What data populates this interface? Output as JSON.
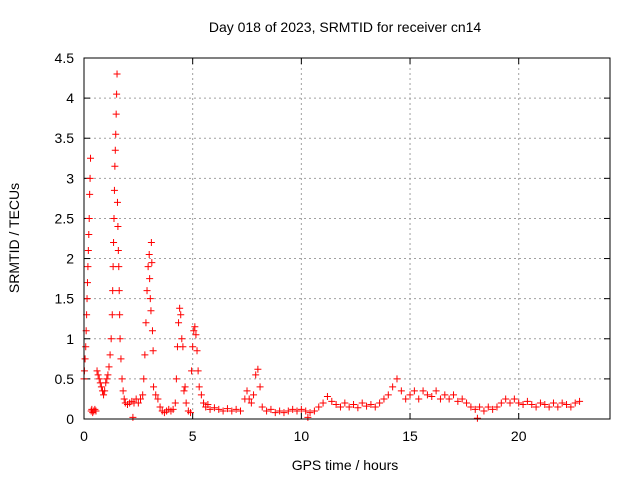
{
  "chart_data": {
    "type": "scatter",
    "title": "Day 018 of 2023, SRMTID for receiver cn14",
    "xlabel": "GPS time / hours",
    "ylabel": "SRMTID / TECUs",
    "xlim": [
      0,
      24.2
    ],
    "ylim": [
      0,
      4.5
    ],
    "grid": true,
    "marker": "+",
    "colors": {
      "points": "#ff0000",
      "grid": "#a0a0a0",
      "axis": "#000000"
    },
    "x_ticks": [
      {
        "value": 0,
        "label": "0"
      },
      {
        "value": 5,
        "label": "5"
      },
      {
        "value": 10,
        "label": "10"
      },
      {
        "value": 15,
        "label": "15"
      },
      {
        "value": 20,
        "label": "20"
      }
    ],
    "y_ticks": [
      {
        "value": 0,
        "label": "0"
      },
      {
        "value": 0.5,
        "label": "0.5"
      },
      {
        "value": 1,
        "label": "1"
      },
      {
        "value": 1.5,
        "label": "1.5"
      },
      {
        "value": 2,
        "label": "2"
      },
      {
        "value": 2.5,
        "label": "2.5"
      },
      {
        "value": 3,
        "label": "3"
      },
      {
        "value": 3.5,
        "label": "3.5"
      },
      {
        "value": 4,
        "label": "4"
      },
      {
        "value": 4.5,
        "label": "4.5"
      }
    ],
    "series": [
      {
        "name": "SRMTID",
        "points": [
          [
            0.0,
            0.5
          ],
          [
            0.02,
            0.6
          ],
          [
            0.05,
            0.75
          ],
          [
            0.08,
            0.9
          ],
          [
            0.1,
            1.1
          ],
          [
            0.12,
            1.3
          ],
          [
            0.14,
            1.5
          ],
          [
            0.16,
            1.7
          ],
          [
            0.18,
            1.9
          ],
          [
            0.2,
            2.1
          ],
          [
            0.22,
            2.3
          ],
          [
            0.24,
            2.5
          ],
          [
            0.26,
            2.8
          ],
          [
            0.28,
            3.0
          ],
          [
            0.3,
            3.25
          ],
          [
            0.33,
            0.1
          ],
          [
            0.36,
            0.12
          ],
          [
            0.4,
            0.08
          ],
          [
            0.45,
            0.1
          ],
          [
            0.5,
            0.12
          ],
          [
            0.55,
            0.1
          ],
          [
            0.6,
            0.6
          ],
          [
            0.65,
            0.55
          ],
          [
            0.7,
            0.5
          ],
          [
            0.75,
            0.45
          ],
          [
            0.8,
            0.4
          ],
          [
            0.85,
            0.35
          ],
          [
            0.9,
            0.3
          ],
          [
            0.95,
            0.35
          ],
          [
            1.0,
            0.45
          ],
          [
            1.05,
            0.5
          ],
          [
            1.1,
            0.55
          ],
          [
            1.15,
            0.65
          ],
          [
            1.2,
            0.8
          ],
          [
            1.25,
            1.0
          ],
          [
            1.3,
            1.3
          ],
          [
            1.32,
            1.6
          ],
          [
            1.34,
            1.9
          ],
          [
            1.36,
            2.2
          ],
          [
            1.38,
            2.5
          ],
          [
            1.4,
            2.85
          ],
          [
            1.42,
            3.15
          ],
          [
            1.44,
            3.35
          ],
          [
            1.46,
            3.55
          ],
          [
            1.48,
            3.8
          ],
          [
            1.5,
            4.05
          ],
          [
            1.52,
            4.3
          ],
          [
            1.54,
            2.7
          ],
          [
            1.56,
            2.4
          ],
          [
            1.58,
            2.1
          ],
          [
            1.6,
            1.9
          ],
          [
            1.62,
            1.6
          ],
          [
            1.64,
            1.3
          ],
          [
            1.66,
            1.0
          ],
          [
            1.7,
            0.75
          ],
          [
            1.75,
            0.5
          ],
          [
            1.8,
            0.35
          ],
          [
            1.85,
            0.25
          ],
          [
            1.9,
            0.2
          ],
          [
            2.0,
            0.18
          ],
          [
            2.1,
            0.2
          ],
          [
            2.2,
            0.22
          ],
          [
            2.25,
            0.02
          ],
          [
            2.3,
            0.2
          ],
          [
            2.4,
            0.25
          ],
          [
            2.5,
            0.2
          ],
          [
            2.6,
            0.25
          ],
          [
            2.7,
            0.3
          ],
          [
            2.75,
            0.5
          ],
          [
            2.8,
            0.8
          ],
          [
            2.85,
            1.2
          ],
          [
            2.9,
            1.6
          ],
          [
            2.95,
            1.9
          ],
          [
            3.0,
            2.05
          ],
          [
            3.02,
            1.75
          ],
          [
            3.05,
            1.5
          ],
          [
            3.08,
            1.35
          ],
          [
            3.1,
            2.2
          ],
          [
            3.12,
            1.95
          ],
          [
            3.15,
            1.1
          ],
          [
            3.18,
            0.85
          ],
          [
            3.2,
            0.4
          ],
          [
            3.3,
            0.3
          ],
          [
            3.4,
            0.25
          ],
          [
            3.5,
            0.15
          ],
          [
            3.6,
            0.1
          ],
          [
            3.7,
            0.08
          ],
          [
            3.8,
            0.1
          ],
          [
            3.9,
            0.12
          ],
          [
            4.0,
            0.1
          ],
          [
            4.1,
            0.12
          ],
          [
            4.2,
            0.2
          ],
          [
            4.25,
            0.5
          ],
          [
            4.3,
            0.9
          ],
          [
            4.35,
            1.2
          ],
          [
            4.4,
            1.38
          ],
          [
            4.45,
            1.3
          ],
          [
            4.5,
            1.0
          ],
          [
            4.55,
            0.9
          ],
          [
            4.6,
            0.35
          ],
          [
            4.65,
            0.4
          ],
          [
            4.7,
            0.2
          ],
          [
            4.8,
            0.1
          ],
          [
            4.9,
            0.08
          ],
          [
            4.95,
            0.6
          ],
          [
            5.0,
            0.9
          ],
          [
            5.05,
            1.1
          ],
          [
            5.1,
            1.15
          ],
          [
            5.15,
            1.05
          ],
          [
            5.2,
            0.85
          ],
          [
            5.25,
            0.6
          ],
          [
            5.3,
            0.4
          ],
          [
            5.4,
            0.3
          ],
          [
            5.5,
            0.2
          ],
          [
            5.6,
            0.15
          ],
          [
            5.7,
            0.18
          ],
          [
            5.8,
            0.12
          ],
          [
            6.0,
            0.14
          ],
          [
            6.2,
            0.12
          ],
          [
            6.4,
            0.1
          ],
          [
            6.6,
            0.13
          ],
          [
            6.8,
            0.1
          ],
          [
            7.0,
            0.12
          ],
          [
            7.2,
            0.1
          ],
          [
            7.4,
            0.25
          ],
          [
            7.5,
            0.35
          ],
          [
            7.6,
            0.25
          ],
          [
            7.7,
            0.2
          ],
          [
            7.8,
            0.3
          ],
          [
            7.9,
            0.55
          ],
          [
            8.0,
            0.62
          ],
          [
            8.1,
            0.4
          ],
          [
            8.2,
            0.15
          ],
          [
            8.4,
            0.1
          ],
          [
            8.6,
            0.12
          ],
          [
            8.8,
            0.08
          ],
          [
            9.0,
            0.1
          ],
          [
            9.2,
            0.08
          ],
          [
            9.4,
            0.1
          ],
          [
            9.6,
            0.12
          ],
          [
            9.8,
            0.1
          ],
          [
            10.0,
            0.12
          ],
          [
            10.2,
            0.1
          ],
          [
            10.3,
            0.02
          ],
          [
            10.4,
            0.08
          ],
          [
            10.6,
            0.1
          ],
          [
            10.8,
            0.15
          ],
          [
            11.0,
            0.2
          ],
          [
            11.2,
            0.28
          ],
          [
            11.4,
            0.22
          ],
          [
            11.6,
            0.18
          ],
          [
            11.8,
            0.15
          ],
          [
            12.0,
            0.2
          ],
          [
            12.2,
            0.15
          ],
          [
            12.4,
            0.18
          ],
          [
            12.6,
            0.14
          ],
          [
            12.8,
            0.2
          ],
          [
            13.0,
            0.16
          ],
          [
            13.2,
            0.18
          ],
          [
            13.4,
            0.15
          ],
          [
            13.6,
            0.2
          ],
          [
            13.8,
            0.25
          ],
          [
            14.0,
            0.3
          ],
          [
            14.2,
            0.4
          ],
          [
            14.4,
            0.5
          ],
          [
            14.6,
            0.35
          ],
          [
            14.8,
            0.25
          ],
          [
            15.0,
            0.3
          ],
          [
            15.2,
            0.35
          ],
          [
            15.4,
            0.25
          ],
          [
            15.6,
            0.35
          ],
          [
            15.8,
            0.3
          ],
          [
            16.0,
            0.28
          ],
          [
            16.2,
            0.35
          ],
          [
            16.4,
            0.25
          ],
          [
            16.6,
            0.3
          ],
          [
            16.8,
            0.25
          ],
          [
            17.0,
            0.3
          ],
          [
            17.2,
            0.22
          ],
          [
            17.4,
            0.25
          ],
          [
            17.6,
            0.2
          ],
          [
            17.8,
            0.15
          ],
          [
            18.0,
            0.12
          ],
          [
            18.1,
            0.01
          ],
          [
            18.2,
            0.15
          ],
          [
            18.4,
            0.1
          ],
          [
            18.6,
            0.15
          ],
          [
            18.8,
            0.12
          ],
          [
            19.0,
            0.15
          ],
          [
            19.2,
            0.2
          ],
          [
            19.4,
            0.25
          ],
          [
            19.6,
            0.2
          ],
          [
            19.8,
            0.25
          ],
          [
            20.0,
            0.2
          ],
          [
            20.2,
            0.18
          ],
          [
            20.4,
            0.22
          ],
          [
            20.6,
            0.18
          ],
          [
            20.8,
            0.15
          ],
          [
            21.0,
            0.2
          ],
          [
            21.2,
            0.18
          ],
          [
            21.4,
            0.15
          ],
          [
            21.6,
            0.2
          ],
          [
            21.8,
            0.15
          ],
          [
            22.0,
            0.2
          ],
          [
            22.2,
            0.18
          ],
          [
            22.4,
            0.15
          ],
          [
            22.6,
            0.2
          ],
          [
            22.8,
            0.22
          ]
        ]
      }
    ]
  }
}
